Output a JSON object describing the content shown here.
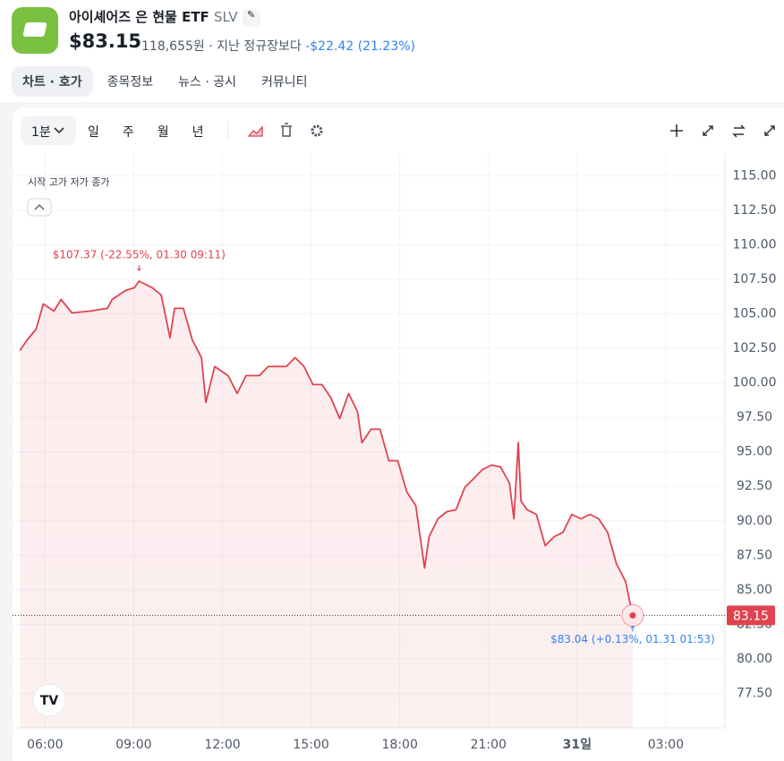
{
  "header": {
    "title": "아이셰어즈 은 현물 ETF",
    "ticker": "SLV",
    "price": "$83.15",
    "price_krw": "118,655원",
    "compare_text": "· 지난 정규장보다",
    "change": "-$22.42 (21.23%)"
  },
  "tabs": [
    "차트 · 호가",
    "종목정보",
    "뉴스 · 공시",
    "커뮤니티"
  ],
  "toolbar": {
    "interval": "1분",
    "periods": [
      "일",
      "주",
      "월",
      "년"
    ]
  },
  "chart_data": {
    "type": "line",
    "legend_text": "시작 고가 저가 종가",
    "color": "#e0434f",
    "grid": true,
    "x": [
      5.15,
      5.4,
      5.7,
      5.94,
      6.3,
      6.54,
      6.91,
      7.51,
      8.11,
      8.27,
      8.72,
      9.02,
      9.18,
      9.63,
      9.93,
      10.23,
      10.38,
      10.68,
      10.98,
      11.29,
      11.44,
      11.74,
      12.19,
      12.5,
      12.8,
      13.25,
      13.55,
      14.16,
      14.46,
      14.76,
      15.06,
      15.37,
      15.67,
      15.97,
      16.27,
      16.57,
      16.72,
      17.03,
      17.33,
      17.63,
      17.93,
      18.24,
      18.54,
      18.84,
      18.99,
      19.29,
      19.59,
      19.9,
      20.2,
      20.5,
      20.8,
      21.1,
      21.41,
      21.71,
      21.86,
      22.01,
      22.1,
      22.31,
      22.62,
      22.92,
      23.22,
      23.52,
      23.82,
      24.13,
      24.43,
      24.73,
      25.03,
      25.33,
      25.64,
      25.88
    ],
    "values": [
      102.35,
      103.12,
      103.9,
      105.72,
      105.2,
      106.04,
      105.07,
      105.2,
      105.4,
      106.04,
      106.69,
      106.89,
      107.37,
      106.89,
      106.37,
      103.25,
      105.4,
      105.4,
      103.12,
      101.83,
      98.58,
      101.18,
      100.53,
      99.23,
      100.53,
      100.53,
      101.18,
      101.18,
      101.83,
      101.18,
      99.88,
      99.88,
      98.91,
      97.41,
      99.23,
      97.93,
      95.66,
      96.64,
      96.64,
      94.36,
      94.36,
      92.09,
      91.12,
      86.58,
      88.85,
      90.15,
      90.67,
      90.8,
      92.42,
      93.07,
      93.72,
      94.04,
      93.91,
      92.74,
      90.15,
      95.66,
      91.44,
      90.8,
      90.47,
      88.2,
      88.85,
      89.17,
      90.47,
      90.15,
      90.47,
      90.15,
      89.17,
      86.9,
      85.6,
      83.15
    ],
    "current_price": {
      "value": 83.15,
      "label": "83.15"
    },
    "high_annotation": "$107.37 (-22.55%, 01.30 09:11)",
    "low_annotation": "$83.04 (+0.13%, 01.31 01:53)",
    "xlim": [
      4.9,
      29
    ],
    "ylim": [
      75,
      116
    ],
    "xticks": [
      {
        "value": 6,
        "label": "06:00"
      },
      {
        "value": 9,
        "label": "09:00"
      },
      {
        "value": 12,
        "label": "12:00"
      },
      {
        "value": 15,
        "label": "15:00"
      },
      {
        "value": 18,
        "label": "18:00"
      },
      {
        "value": 21,
        "label": "21:00"
      },
      {
        "value": 24,
        "label": "31일"
      },
      {
        "value": 27,
        "label": "03:00"
      }
    ],
    "yticks": [
      {
        "value": 77.5,
        "label": "77.50"
      },
      {
        "value": 80,
        "label": "80.00"
      },
      {
        "value": 82.5,
        "label": "82.50"
      },
      {
        "value": 85,
        "label": "85.00"
      },
      {
        "value": 87.5,
        "label": "87.50"
      },
      {
        "value": 90,
        "label": "90.00"
      },
      {
        "value": 92.5,
        "label": "92.50"
      },
      {
        "value": 95,
        "label": "95.00"
      },
      {
        "value": 97.5,
        "label": "97.50"
      },
      {
        "value": 100,
        "label": "100.00"
      },
      {
        "value": 102.5,
        "label": "102.50"
      },
      {
        "value": 105,
        "label": "105.00"
      },
      {
        "value": 107.5,
        "label": "107.50"
      },
      {
        "value": 110,
        "label": "110.00"
      },
      {
        "value": 112.5,
        "label": "112.50"
      },
      {
        "value": 115,
        "label": "115.00"
      }
    ]
  }
}
